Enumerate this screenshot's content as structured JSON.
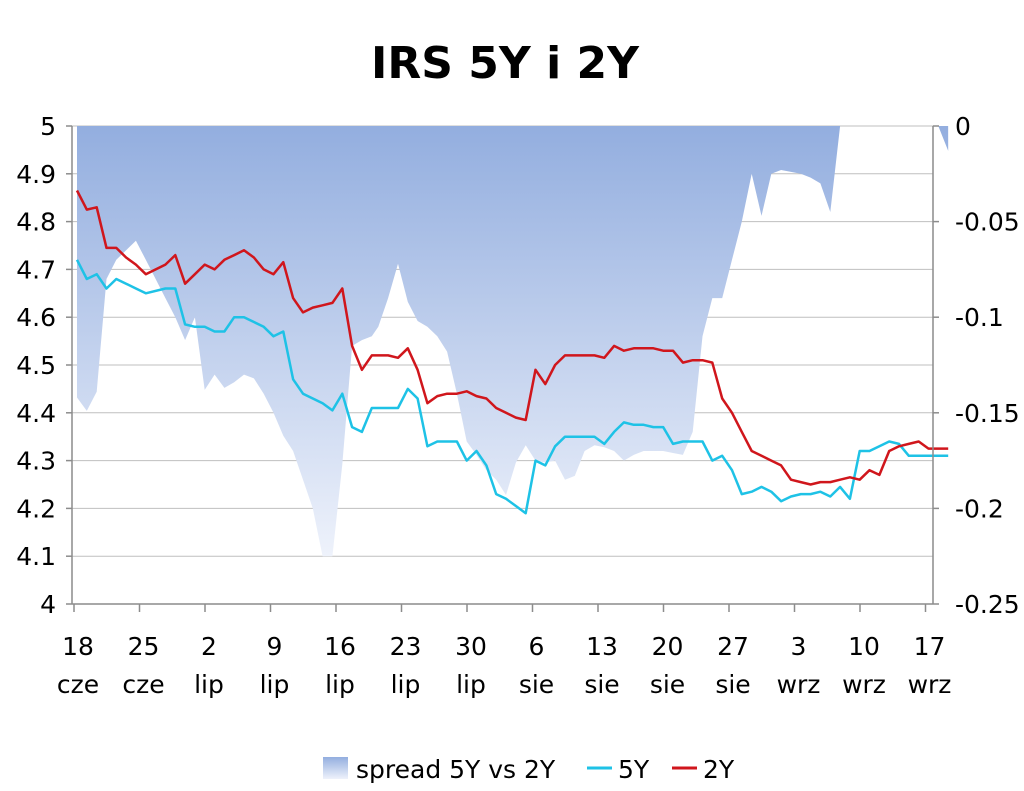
{
  "chart_data": {
    "type": "line",
    "title": "IRS 5Y i 2Y",
    "grid": true,
    "legend_position": "bottom",
    "y_left": {
      "min": 4,
      "max": 5,
      "step": 0.1,
      "tick_labels": [
        "5",
        "4.9",
        "4.8",
        "4.7",
        "4.6",
        "4.5",
        "4.4",
        "4.3",
        "4.2",
        "4.1",
        "4"
      ]
    },
    "y_right": {
      "min": -0.25,
      "max": 0,
      "step": 0.05,
      "tick_labels": [
        "0",
        "-0.05",
        "-0.1",
        "-0.15",
        "-0.2",
        "-0.25"
      ]
    },
    "x_ticks": [
      {
        "day": "18",
        "month": "cze"
      },
      {
        "day": "25",
        "month": "cze"
      },
      {
        "day": "2",
        "month": "lip"
      },
      {
        "day": "9",
        "month": "lip"
      },
      {
        "day": "16",
        "month": "lip"
      },
      {
        "day": "23",
        "month": "lip"
      },
      {
        "day": "30",
        "month": "lip"
      },
      {
        "day": "6",
        "month": "sie"
      },
      {
        "day": "13",
        "month": "sie"
      },
      {
        "day": "20",
        "month": "sie"
      },
      {
        "day": "27",
        "month": "sie"
      },
      {
        "day": "3",
        "month": "wrz"
      },
      {
        "day": "10",
        "month": "wrz"
      },
      {
        "day": "17",
        "month": "wrz"
      }
    ],
    "colors": {
      "spread_top": "#93aedf",
      "spread_bottom": "#eef2fb",
      "5Y": "#1ec2e6",
      "2Y": "#d0161c",
      "grid": "#bfbfbf",
      "axis": "#8c8c8c"
    },
    "legend": [
      {
        "label": "spread 5Y vs 2Y",
        "series": "spread"
      },
      {
        "label": "5Y",
        "series": "5Y"
      },
      {
        "label": "2Y",
        "series": "2Y"
      }
    ],
    "series": [
      {
        "name": "spread 5Y vs 2Y",
        "axis": "right",
        "style": "area",
        "x": [
          0,
          0.15,
          0.3,
          0.45,
          0.6,
          0.75,
          0.9,
          1.05,
          1.35,
          1.5,
          1.65,
          1.8,
          1.95,
          2.1,
          2.25,
          2.4,
          2.55,
          2.7,
          2.85,
          3.0,
          3.15,
          3.3,
          3.45,
          3.6,
          3.75,
          3.9,
          4.05,
          4.2,
          4.35,
          4.5,
          4.6,
          4.75,
          4.9,
          5.05,
          5.2,
          5.35,
          5.5,
          5.65,
          5.8,
          5.95,
          6.1,
          6.25,
          6.4,
          6.55,
          6.7,
          6.85,
          7.0,
          7.15,
          7.3,
          7.45,
          7.6,
          7.75,
          7.9,
          8.05,
          8.2,
          8.35,
          8.5,
          8.65,
          8.8,
          8.95,
          9.1,
          9.25,
          9.4,
          9.55,
          9.7,
          9.85,
          10.0,
          10.15,
          10.3,
          10.45,
          10.6,
          10.75,
          10.9,
          11.05,
          11.2,
          11.35,
          11.5,
          11.65,
          11.8,
          11.95,
          12.1,
          12.25,
          12.4,
          12.55,
          12.7,
          12.85,
          13.0,
          13.15,
          13.3
        ],
        "values": [
          -0.142,
          -0.149,
          -0.139,
          -0.08,
          -0.07,
          -0.065,
          -0.06,
          -0.07,
          -0.09,
          -0.1,
          -0.112,
          -0.1,
          -0.138,
          -0.13,
          -0.137,
          -0.134,
          -0.13,
          -0.132,
          -0.14,
          -0.15,
          -0.162,
          -0.17,
          -0.185,
          -0.2,
          -0.225,
          -0.225,
          -0.177,
          -0.115,
          -0.112,
          -0.11,
          -0.105,
          -0.09,
          -0.072,
          -0.092,
          -0.102,
          -0.105,
          -0.11,
          -0.118,
          -0.14,
          -0.165,
          -0.172,
          -0.18,
          -0.185,
          -0.193,
          -0.176,
          -0.167,
          -0.175,
          -0.176,
          -0.175,
          -0.185,
          -0.183,
          -0.17,
          -0.167,
          -0.168,
          -0.17,
          -0.175,
          -0.172,
          -0.17,
          -0.17,
          -0.17,
          -0.171,
          -0.172,
          -0.16,
          -0.11,
          -0.09,
          -0.09,
          -0.07,
          -0.05,
          -0.025,
          -0.047,
          -0.025,
          -0.023,
          -0.024,
          -0.025,
          -0.027,
          -0.03,
          -0.045,
          0,
          0,
          0,
          0,
          0,
          0,
          0,
          0,
          0,
          0,
          0,
          -0.013
        ]
      },
      {
        "name": "5Y",
        "axis": "left",
        "style": "line",
        "x": [
          0,
          0.15,
          0.3,
          0.45,
          0.6,
          0.75,
          0.9,
          1.05,
          1.35,
          1.5,
          1.65,
          1.8,
          1.95,
          2.1,
          2.25,
          2.4,
          2.55,
          2.7,
          2.85,
          3.0,
          3.15,
          3.3,
          3.45,
          3.6,
          3.75,
          3.9,
          4.05,
          4.2,
          4.35,
          4.5,
          4.6,
          4.75,
          4.9,
          5.05,
          5.2,
          5.35,
          5.5,
          5.65,
          5.8,
          5.95,
          6.1,
          6.25,
          6.4,
          6.55,
          6.7,
          6.85,
          7.0,
          7.15,
          7.3,
          7.45,
          7.6,
          7.75,
          7.9,
          8.05,
          8.2,
          8.35,
          8.5,
          8.65,
          8.8,
          8.95,
          9.1,
          9.25,
          9.4,
          9.55,
          9.7,
          9.85,
          10.0,
          10.15,
          10.3,
          10.45,
          10.6,
          10.75,
          10.9,
          11.05,
          11.2,
          11.35,
          11.5,
          11.65,
          11.8,
          11.95,
          12.1,
          12.25,
          12.4,
          12.55,
          12.7,
          12.85,
          13.0,
          13.15,
          13.3
        ],
        "values": [
          4.72,
          4.68,
          4.69,
          4.66,
          4.68,
          4.67,
          4.66,
          4.65,
          4.66,
          4.66,
          4.585,
          4.58,
          4.58,
          4.57,
          4.57,
          4.6,
          4.6,
          4.59,
          4.58,
          4.56,
          4.57,
          4.47,
          4.44,
          4.43,
          4.42,
          4.405,
          4.44,
          4.37,
          4.36,
          4.41,
          4.41,
          4.41,
          4.41,
          4.45,
          4.43,
          4.33,
          4.34,
          4.34,
          4.34,
          4.3,
          4.32,
          4.29,
          4.23,
          4.22,
          4.205,
          4.19,
          4.3,
          4.29,
          4.33,
          4.35,
          4.35,
          4.35,
          4.35,
          4.335,
          4.36,
          4.38,
          4.375,
          4.375,
          4.37,
          4.37,
          4.335,
          4.34,
          4.34,
          4.34,
          4.3,
          4.31,
          4.28,
          4.23,
          4.235,
          4.245,
          4.235,
          4.215,
          4.225,
          4.23,
          4.23,
          4.235,
          4.225,
          4.245,
          4.22,
          4.32,
          4.32,
          4.33,
          4.34,
          4.335,
          4.31,
          4.31,
          4.31,
          4.31,
          4.31
        ]
      },
      {
        "name": "2Y",
        "axis": "left",
        "style": "line",
        "x": [
          0,
          0.15,
          0.3,
          0.45,
          0.6,
          0.75,
          0.9,
          1.05,
          1.35,
          1.5,
          1.65,
          1.8,
          1.95,
          2.1,
          2.25,
          2.4,
          2.55,
          2.7,
          2.85,
          3.0,
          3.15,
          3.3,
          3.45,
          3.6,
          3.75,
          3.9,
          4.05,
          4.2,
          4.35,
          4.5,
          4.6,
          4.75,
          4.9,
          5.05,
          5.2,
          5.35,
          5.5,
          5.65,
          5.8,
          5.95,
          6.1,
          6.25,
          6.4,
          6.55,
          6.7,
          6.85,
          7.0,
          7.15,
          7.3,
          7.45,
          7.6,
          7.75,
          7.9,
          8.05,
          8.2,
          8.35,
          8.5,
          8.65,
          8.8,
          8.95,
          9.1,
          9.25,
          9.4,
          9.55,
          9.7,
          9.85,
          10.0,
          10.15,
          10.3,
          10.45,
          10.6,
          10.75,
          10.9,
          11.05,
          11.2,
          11.35,
          11.5,
          11.65,
          11.8,
          11.95,
          12.1,
          12.25,
          12.4,
          12.55,
          12.7,
          12.85,
          13.0,
          13.15,
          13.3
        ],
        "values": [
          4.865,
          4.825,
          4.83,
          4.745,
          4.745,
          4.725,
          4.71,
          4.69,
          4.71,
          4.73,
          4.67,
          4.69,
          4.71,
          4.7,
          4.72,
          4.73,
          4.74,
          4.725,
          4.7,
          4.69,
          4.715,
          4.64,
          4.61,
          4.62,
          4.625,
          4.63,
          4.66,
          4.54,
          4.49,
          4.52,
          4.52,
          4.52,
          4.515,
          4.535,
          4.49,
          4.42,
          4.435,
          4.44,
          4.44,
          4.445,
          4.435,
          4.43,
          4.41,
          4.4,
          4.39,
          4.385,
          4.49,
          4.46,
          4.5,
          4.52,
          4.52,
          4.52,
          4.52,
          4.515,
          4.54,
          4.53,
          4.535,
          4.535,
          4.535,
          4.53,
          4.53,
          4.505,
          4.51,
          4.51,
          4.505,
          4.43,
          4.4,
          4.36,
          4.32,
          4.31,
          4.3,
          4.29,
          4.26,
          4.255,
          4.25,
          4.255,
          4.255,
          4.26,
          4.265,
          4.26,
          4.28,
          4.27,
          4.32,
          4.33,
          4.335,
          4.34,
          4.325,
          4.325,
          4.325
        ]
      }
    ]
  }
}
